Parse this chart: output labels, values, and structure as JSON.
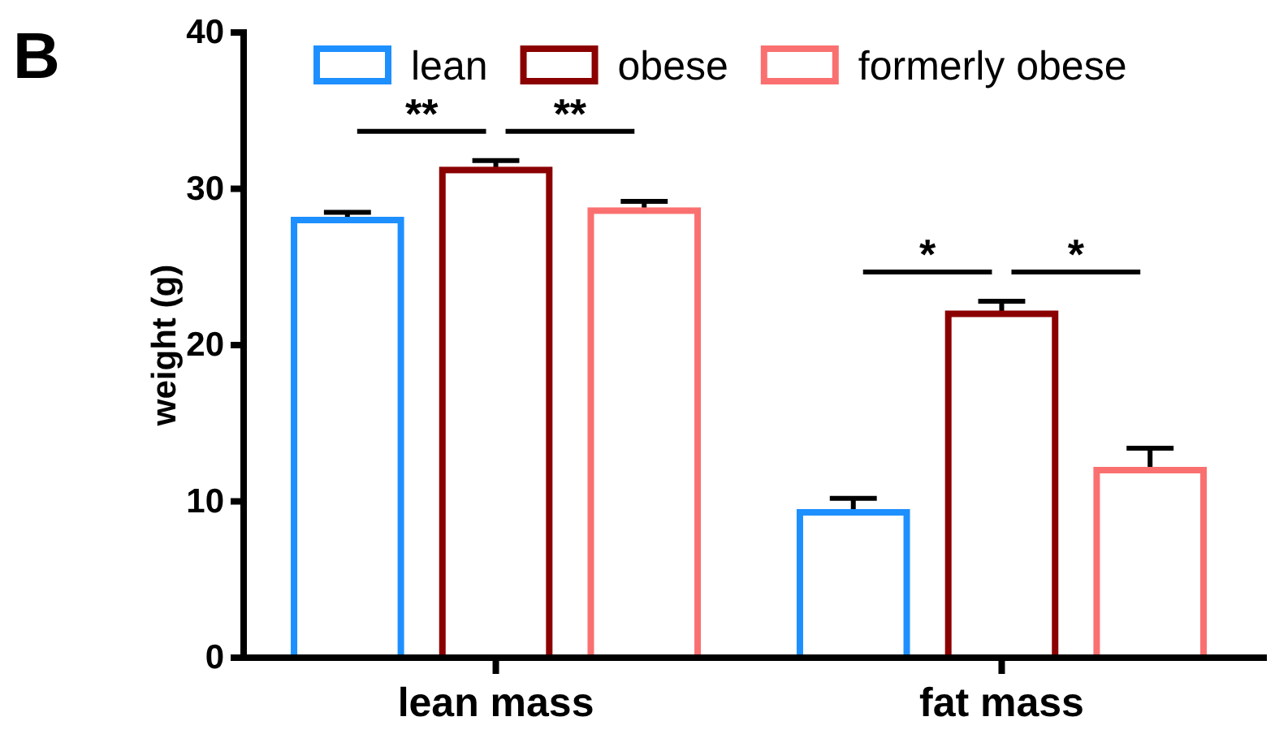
{
  "chart_data": {
    "type": "bar",
    "title": "B",
    "ylabel": "weight (g)",
    "categories": [
      "lean mass",
      "fat mass"
    ],
    "series": [
      {
        "name": "lean",
        "color": "#1e8fff",
        "values": [
          28,
          9.3
        ],
        "errors": [
          0.5,
          0.9
        ]
      },
      {
        "name": "obese",
        "color": "#8b0000",
        "values": [
          31.2,
          22
        ],
        "errors": [
          0.6,
          0.8
        ]
      },
      {
        "name": "formerly obese",
        "color": "#fa7070",
        "values": [
          28.6,
          12
        ],
        "errors": [
          0.6,
          1.4
        ]
      }
    ],
    "ylim": [
      0,
      40
    ],
    "yticks": [
      0,
      10,
      20,
      30,
      40
    ],
    "legend": "top",
    "grid": false,
    "annotations": [
      "**",
      "**",
      "*",
      "*"
    ]
  }
}
